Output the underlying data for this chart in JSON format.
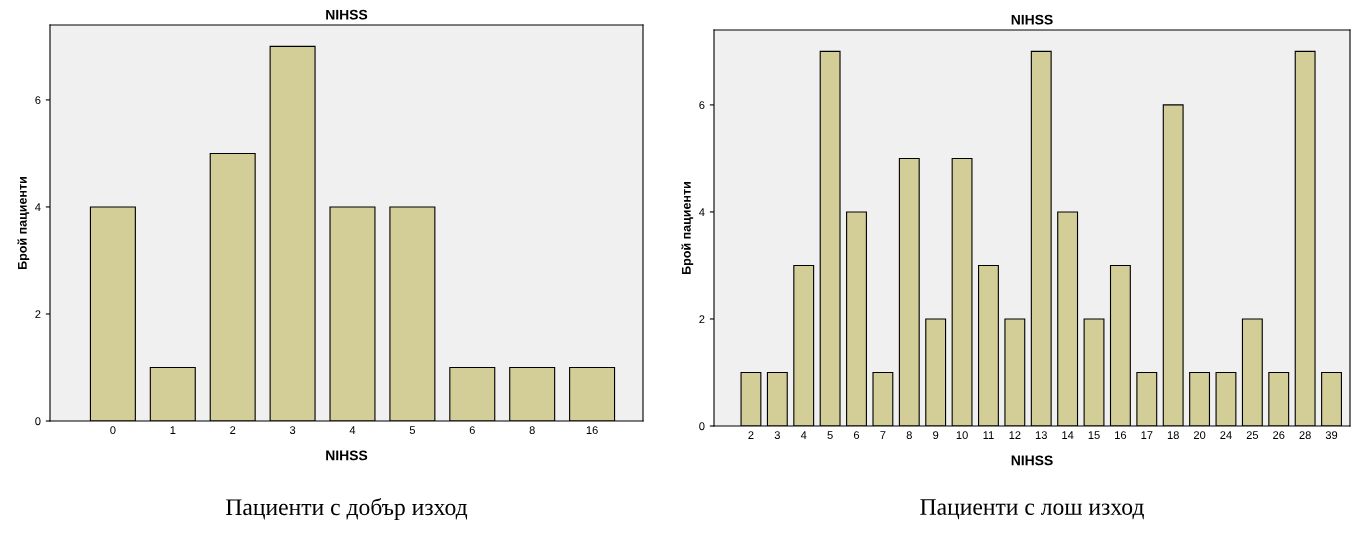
{
  "chart_data": [
    {
      "type": "bar",
      "title": "NIHSS",
      "xlabel": "NIHSS",
      "ylabel": "Брой пациенти",
      "categories": [
        "0",
        "1",
        "2",
        "3",
        "4",
        "5",
        "6",
        "8",
        "16"
      ],
      "values": [
        4,
        1,
        5,
        7,
        4,
        4,
        1,
        1,
        1
      ],
      "color": "#d3ce97",
      "ylim": [
        0,
        7.4
      ],
      "yticks": [
        0,
        2,
        4,
        6
      ],
      "grid": false,
      "legend": false,
      "annotations": [
        "Пациенти с добър изход"
      ]
    },
    {
      "type": "bar",
      "title": "NIHSS",
      "xlabel": "NIHSS",
      "ylabel": "Брой пациенти",
      "categories": [
        "2",
        "3",
        "4",
        "5",
        "6",
        "7",
        "8",
        "9",
        "10",
        "11",
        "12",
        "13",
        "14",
        "15",
        "16",
        "17",
        "18",
        "20",
        "24",
        "25",
        "26",
        "28",
        "39"
      ],
      "values": [
        1,
        1,
        3,
        7,
        4,
        1,
        5,
        2,
        5,
        3,
        2,
        7,
        4,
        2,
        3,
        1,
        6,
        1,
        1,
        2,
        1,
        7,
        1
      ],
      "color": "#d3ce97",
      "ylim": [
        0,
        7.4
      ],
      "yticks": [
        0,
        2,
        4,
        6
      ],
      "grid": false,
      "legend": false,
      "annotations": [
        "Пациенти с лош изход"
      ]
    }
  ]
}
